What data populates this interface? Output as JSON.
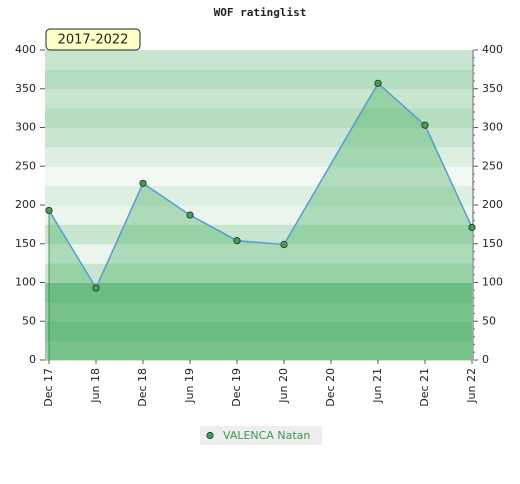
{
  "chart_data": {
    "type": "area",
    "title": "WOF ratinglist",
    "annotation": "2017-2022",
    "categories": [
      "Dec 17",
      "Jun 18",
      "Dec 18",
      "Jun 19",
      "Dec 19",
      "Jun 20",
      "Dec 20",
      "Jun 21",
      "Dec 21",
      "Jun 22"
    ],
    "x": [
      "Dec 17",
      "Jun 18",
      "Dec 18",
      "Jun 19",
      "Dec 19",
      "Jun 20",
      "Jun 21",
      "Dec 21",
      "Jun 22"
    ],
    "series": [
      {
        "name": "VALENCA Natan",
        "color": "#5a9bd5",
        "marker_color": "#4a9a5a",
        "values": [
          193,
          93,
          228,
          187,
          154,
          149,
          357,
          303,
          171
        ]
      }
    ],
    "ylim": [
      0,
      400
    ],
    "yticks": [
      0,
      50,
      100,
      150,
      200,
      250,
      300,
      350,
      400
    ],
    "y2lim": [
      0,
      400
    ],
    "y2ticks": [
      0,
      50,
      100,
      150,
      200,
      250,
      300,
      350,
      400
    ],
    "legend": "bottom"
  }
}
